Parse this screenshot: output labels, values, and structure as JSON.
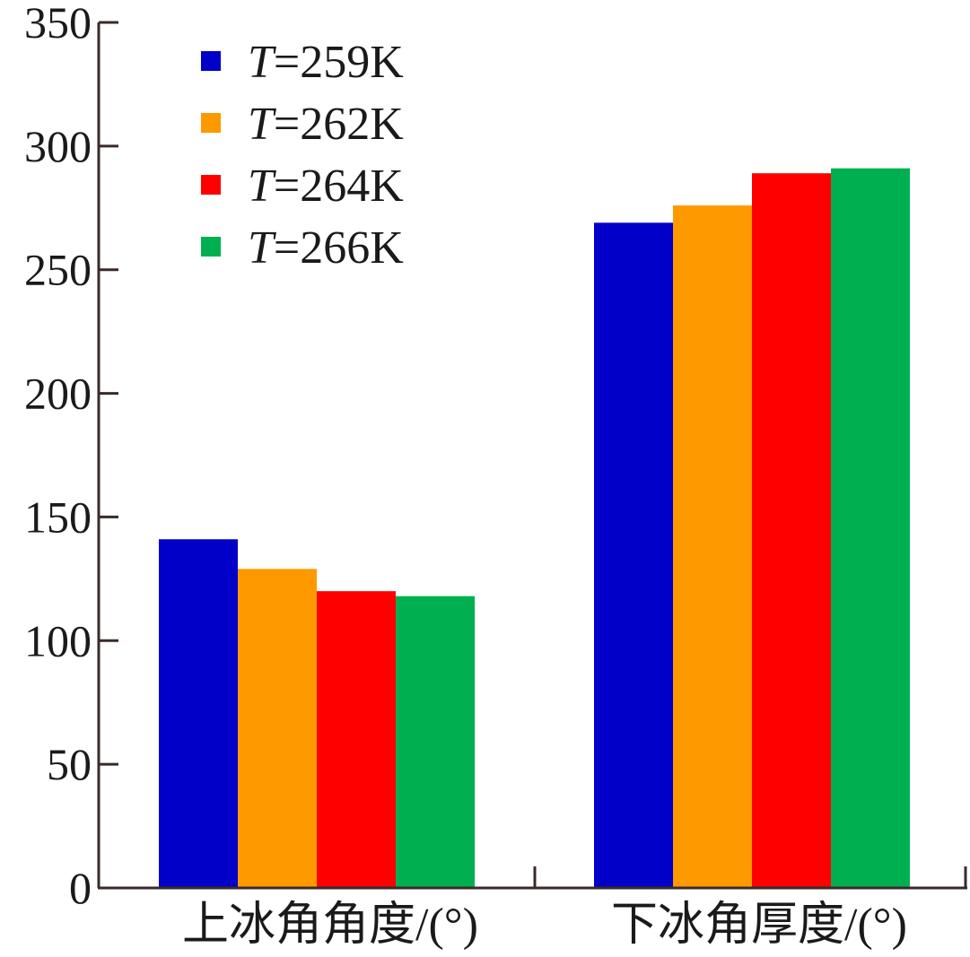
{
  "chart_data": {
    "type": "bar",
    "categories": [
      "上冰角角度/(°)",
      "下冰角厚度/(°)"
    ],
    "series": [
      {
        "name_var": "T",
        "name_rest": "=259K",
        "name": "T=259K",
        "color": "#0000c8",
        "values": [
          141,
          269
        ]
      },
      {
        "name_var": "T",
        "name_rest": "=262K",
        "name": "T=262K",
        "color": "#ff9900",
        "values": [
          129,
          276
        ]
      },
      {
        "name_var": "T",
        "name_rest": "=264K",
        "name": "T=264K",
        "color": "#ff0000",
        "values": [
          120,
          289
        ]
      },
      {
        "name_var": "T",
        "name_rest": "=266K",
        "name": "T=266K",
        "color": "#00b050",
        "values": [
          118,
          291
        ]
      }
    ],
    "ylim": [
      0,
      350
    ],
    "yticks": [
      0,
      50,
      100,
      150,
      200,
      250,
      300,
      350
    ],
    "title": "",
    "xlabel": "",
    "ylabel": "",
    "legend": "top-left",
    "grid": false,
    "axis_color": "#3a2a2a"
  }
}
